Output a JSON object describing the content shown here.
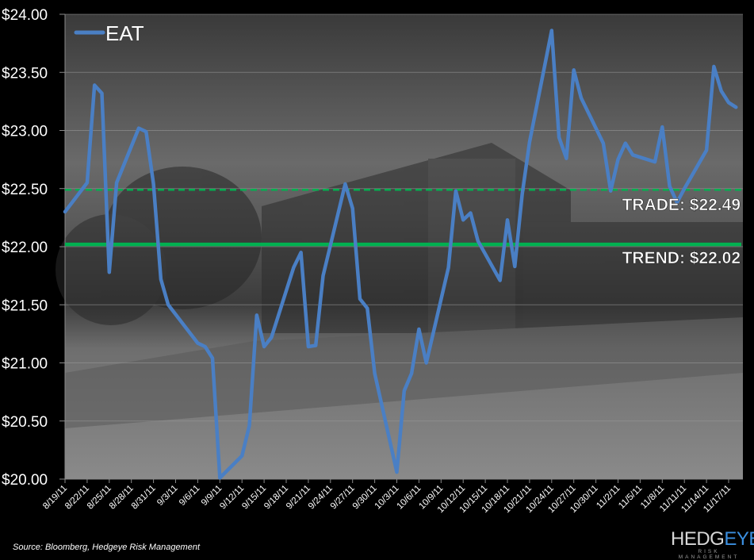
{
  "chart_data": {
    "type": "line",
    "title": "",
    "xlabel": "",
    "ylabel": "",
    "ylim": [
      20.0,
      24.0
    ],
    "grid": true,
    "legend_position": "top-left",
    "y_ticks": [
      "$20.00",
      "$20.50",
      "$21.00",
      "$21.50",
      "$22.00",
      "$22.50",
      "$23.00",
      "$23.50",
      "$24.00"
    ],
    "x_ticks": [
      "8/19/11",
      "8/22/11",
      "8/25/11",
      "8/28/11",
      "8/31/11",
      "9/3/11",
      "9/6/11",
      "9/9/11",
      "9/12/11",
      "9/15/11",
      "9/18/11",
      "9/21/11",
      "9/24/11",
      "9/27/11",
      "9/30/11",
      "10/3/11",
      "10/6/11",
      "10/9/11",
      "10/12/11",
      "10/15/11",
      "10/18/11",
      "10/21/11",
      "10/24/11",
      "10/27/11",
      "10/30/11",
      "11/2/11",
      "11/5/11",
      "11/8/11",
      "11/11/11",
      "11/14/11",
      "11/17/11"
    ],
    "series": [
      {
        "name": "EAT",
        "color": "#4a7fc4",
        "x": [
          "8/19/11",
          "8/22/11",
          "8/23/11",
          "8/24/11",
          "8/25/11",
          "8/26/11",
          "8/29/11",
          "8/30/11",
          "8/31/11",
          "9/1/11",
          "9/2/11",
          "9/6/11",
          "9/7/11",
          "9/8/11",
          "9/9/11",
          "9/12/11",
          "9/13/11",
          "9/14/11",
          "9/15/11",
          "9/16/11",
          "9/19/11",
          "9/20/11",
          "9/21/11",
          "9/22/11",
          "9/23/11",
          "9/26/11",
          "9/27/11",
          "9/28/11",
          "9/29/11",
          "9/30/11",
          "10/3/11",
          "10/4/11",
          "10/5/11",
          "10/6/11",
          "10/7/11",
          "10/10/11",
          "10/11/11",
          "10/12/11",
          "10/13/11",
          "10/14/11",
          "10/17/11",
          "10/18/11",
          "10/19/11",
          "10/20/11",
          "10/21/11",
          "10/24/11",
          "10/25/11",
          "10/26/11",
          "10/27/11",
          "10/28/11",
          "10/31/11",
          "11/1/11",
          "11/2/11",
          "11/3/11",
          "11/4/11",
          "11/7/11",
          "11/8/11",
          "11/9/11",
          "11/10/11",
          "11/11/11",
          "11/14/11",
          "11/15/11",
          "11/16/11",
          "11/17/11",
          "11/18/11"
        ],
        "values": [
          22.3,
          22.55,
          23.39,
          23.32,
          21.78,
          22.55,
          23.02,
          22.99,
          22.54,
          21.72,
          21.5,
          21.17,
          21.14,
          21.04,
          20.01,
          20.2,
          20.46,
          21.41,
          21.14,
          21.22,
          21.82,
          21.95,
          21.14,
          21.15,
          21.75,
          22.54,
          22.33,
          21.55,
          21.47,
          20.91,
          20.06,
          20.76,
          20.91,
          21.29,
          21.0,
          21.82,
          22.48,
          22.23,
          22.29,
          22.05,
          21.71,
          22.23,
          21.83,
          22.45,
          22.9,
          23.86,
          22.94,
          22.76,
          23.52,
          23.28,
          22.89,
          22.48,
          22.75,
          22.89,
          22.79,
          22.73,
          23.03,
          22.52,
          22.38,
          22.5,
          22.83,
          23.55,
          23.34,
          23.24,
          23.2
        ]
      }
    ],
    "reference_lines": [
      {
        "name": "TRADE",
        "value": 22.49,
        "label": "TRADE: $22.49",
        "style": "dashed",
        "color": "#00b050"
      },
      {
        "name": "TREND",
        "value": 22.02,
        "label": "TREND: $22.02",
        "style": "solid",
        "color": "#00b050"
      }
    ]
  },
  "legend": {
    "label": "EAT"
  },
  "labels": {
    "trade": "TRADE: $22.49",
    "trend": "TREND: $22.02"
  },
  "footer": {
    "source": "Source: Bloomberg, Hedgeye Risk Management"
  },
  "logo": {
    "hedg": "HEDG",
    "eye": "EYE",
    "sub": "RISK MANAGEMENT"
  }
}
